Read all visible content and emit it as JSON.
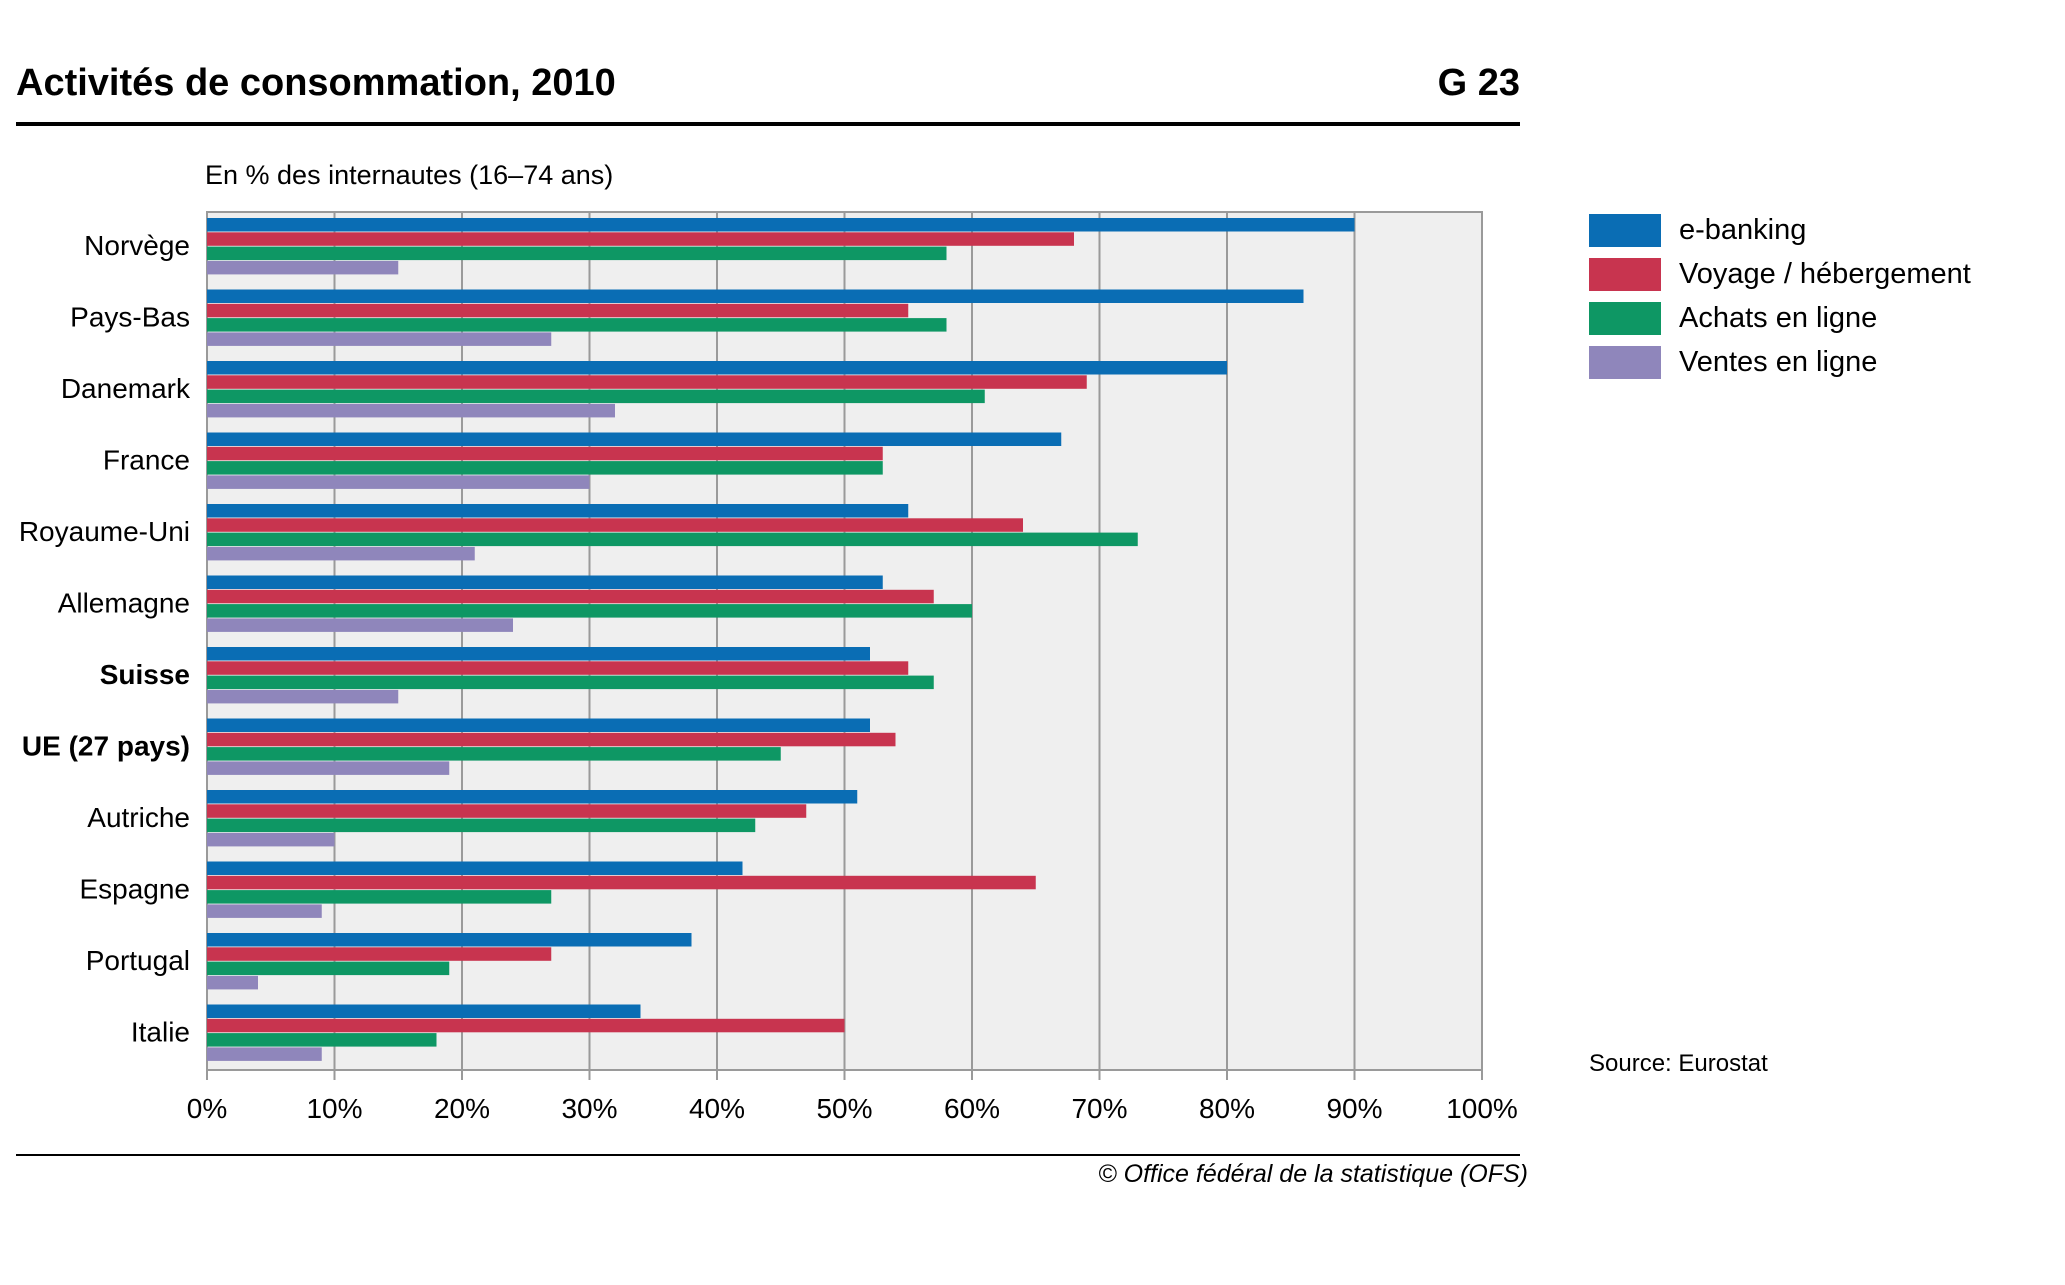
{
  "header": {
    "title": "Activités de consommation, 2010",
    "code": "G 23",
    "subtitle": "En % des internautes (16–74 ans)"
  },
  "footer": {
    "source": "Source: Eurostat",
    "copyright": "© Office fédéral de la statistique (OFS)"
  },
  "colors": {
    "ebanking": "#0a6db4",
    "voyage": "#c8344f",
    "achats": "#0e9764",
    "ventes": "#8f86bb",
    "plot_bg": "#efefef",
    "grid": "#9a9a9a"
  },
  "chart_data": {
    "type": "bar",
    "orientation": "horizontal",
    "title": "Activités de consommation, 2010",
    "xlabel": "En % des internautes (16–74 ans)",
    "ylabel": "",
    "xlim": [
      0,
      100
    ],
    "grid": true,
    "legend_position": "right",
    "x_ticks": [
      "0%",
      "10%",
      "20%",
      "30%",
      "40%",
      "50%",
      "60%",
      "70%",
      "80%",
      "90%",
      "100%"
    ],
    "categories": [
      "Norvège",
      "Pays-Bas",
      "Danemark",
      "France",
      "Royaume-Uni",
      "Allemagne",
      "Suisse",
      "UE (27 pays)",
      "Autriche",
      "Espagne",
      "Portugal",
      "Italie"
    ],
    "bold_categories": [
      "Suisse",
      "UE (27 pays)"
    ],
    "series": [
      {
        "name": "e-banking",
        "color_key": "ebanking",
        "values": [
          90,
          86,
          80,
          67,
          55,
          53,
          52,
          52,
          51,
          42,
          38,
          34
        ]
      },
      {
        "name": "Voyage / hébergement",
        "color_key": "voyage",
        "values": [
          68,
          55,
          69,
          53,
          64,
          57,
          55,
          54,
          47,
          65,
          27,
          50
        ]
      },
      {
        "name": "Achats en ligne",
        "color_key": "achats",
        "values": [
          58,
          58,
          61,
          53,
          73,
          60,
          57,
          45,
          43,
          27,
          19,
          18
        ]
      },
      {
        "name": "Ventes en ligne",
        "color_key": "ventes",
        "values": [
          15,
          27,
          32,
          30,
          21,
          24,
          15,
          19,
          10,
          9,
          4,
          9
        ]
      }
    ]
  }
}
